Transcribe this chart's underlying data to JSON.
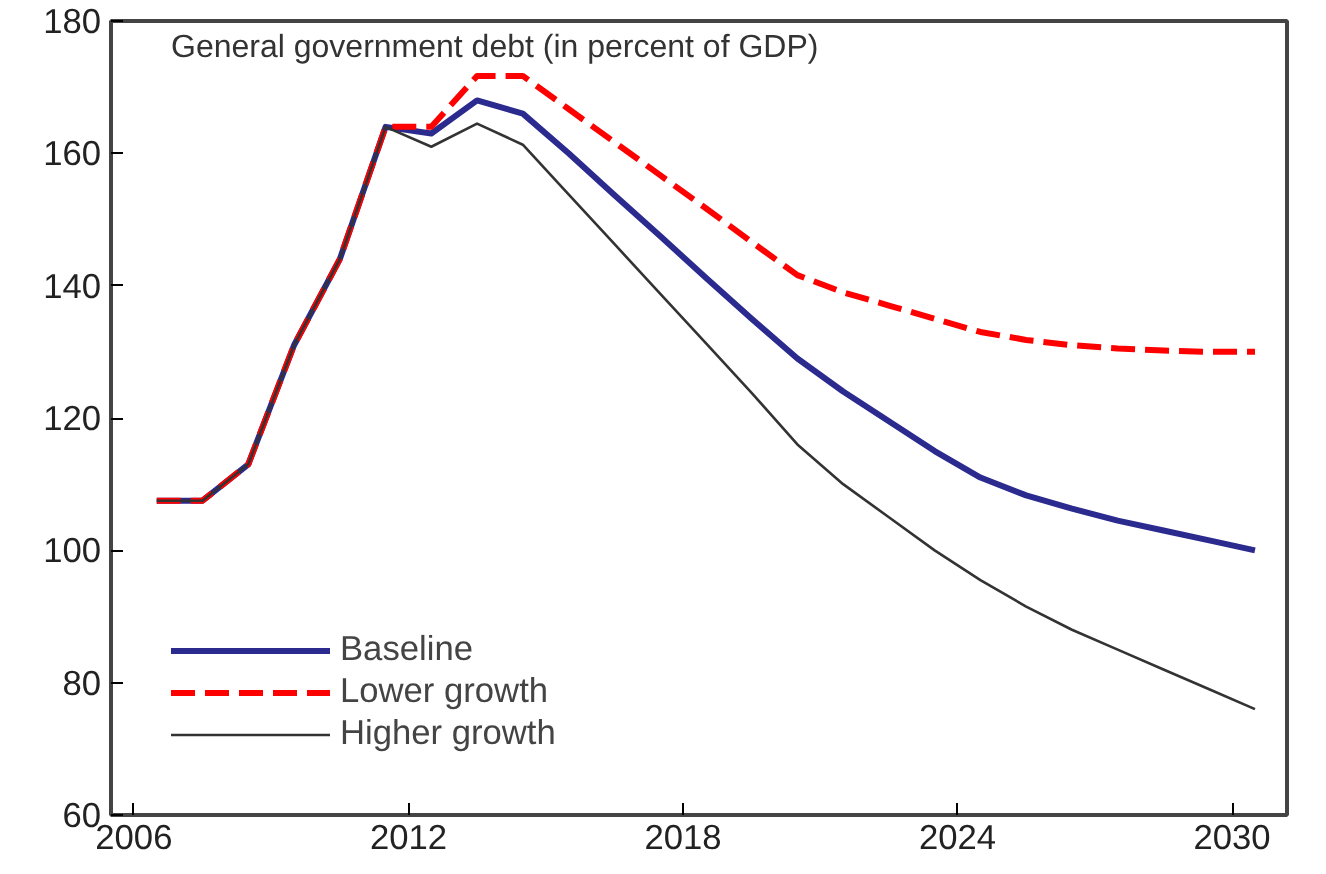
{
  "chart_data": {
    "type": "line",
    "title": "General government debt (in percent of GDP)",
    "x": [
      2006.5,
      2007.5,
      2008.5,
      2009.5,
      2010.5,
      2011.5,
      2012.5,
      2013.5,
      2014.5,
      2015.5,
      2016.5,
      2017.5,
      2018.5,
      2019.5,
      2020.5,
      2021.5,
      2022.5,
      2023.5,
      2024.5,
      2025.5,
      2026.5,
      2027.5,
      2028.5,
      2029.5,
      2030.5
    ],
    "series": [
      {
        "name": "Baseline",
        "color": "#2b2a8f",
        "line_style": "solid",
        "values": [
          107.5,
          107.5,
          113,
          131,
          144,
          164,
          163,
          168,
          166,
          160,
          153.7,
          147.5,
          141.2,
          135,
          129,
          124,
          119.5,
          115,
          111,
          108.3,
          106.3,
          104.5,
          103,
          101.5,
          100
        ]
      },
      {
        "name": "Lower growth",
        "color": "#ff0000",
        "line_style": "dashed",
        "values": [
          107.5,
          107.5,
          113,
          131,
          144,
          164,
          164,
          171.7,
          171.7,
          166.7,
          161.7,
          156.7,
          151.7,
          146.6,
          141.6,
          139,
          137,
          135,
          133,
          131.8,
          131,
          130.5,
          130.2,
          130,
          130
        ]
      },
      {
        "name": "Higher growth",
        "color": "#333333",
        "line_style": "solid",
        "values": [
          107.5,
          107.5,
          113,
          131,
          144,
          164,
          161,
          164.5,
          161.3,
          153.8,
          146.3,
          138.8,
          131.3,
          123.8,
          116,
          110,
          105,
          100,
          95.5,
          91.5,
          88,
          85,
          82,
          79,
          76
        ]
      }
    ],
    "xlim": [
      2005.5,
      2031.2
    ],
    "ylim": [
      60,
      180
    ],
    "xticks": [
      2006,
      2012,
      2018,
      2024,
      2030
    ],
    "yticks": [
      60,
      80,
      100,
      120,
      140,
      160,
      180
    ],
    "grid": false,
    "legend": "bottom left",
    "marker": "none"
  }
}
